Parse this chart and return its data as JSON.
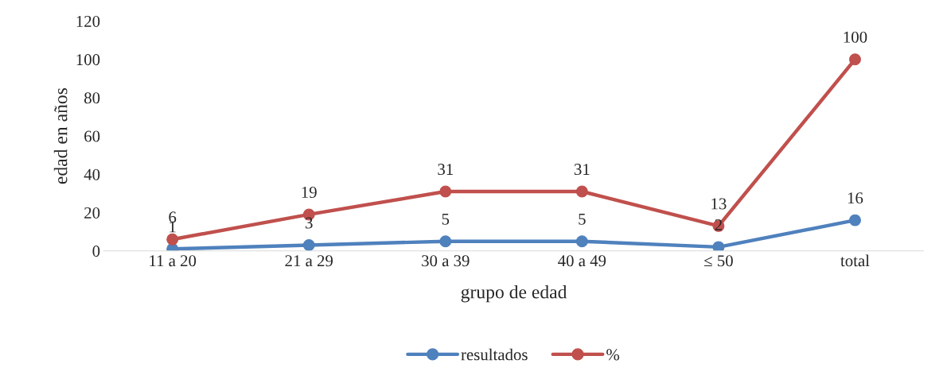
{
  "chart_data": {
    "type": "line",
    "xlabel": "grupo de edad",
    "ylabel": "edad en años",
    "categories": [
      "11 a 20",
      "21 a 29",
      "30 a 39",
      "40 a 49",
      "≤ 50",
      "total"
    ],
    "series": [
      {
        "name": "resultados",
        "color": "#4f81bd",
        "values": [
          1,
          3,
          5,
          5,
          2,
          16
        ]
      },
      {
        "name": "%",
        "color": "#c0504d",
        "values": [
          6,
          19,
          31,
          31,
          13,
          100
        ]
      }
    ],
    "ylim": [
      0,
      120
    ],
    "yticks": [
      0,
      20,
      40,
      60,
      80,
      100,
      120
    ],
    "data_labels": true,
    "marker": "circle",
    "line_style": "solid",
    "legend": "bottom",
    "grid": false
  }
}
